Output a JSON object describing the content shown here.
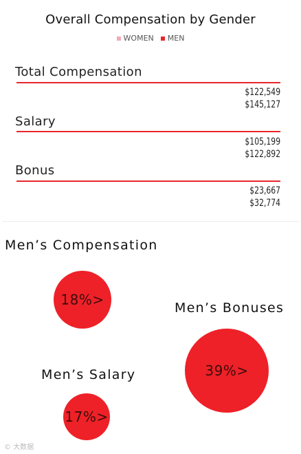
{
  "chart_data": [
    {
      "type": "bar",
      "title": "Overall Compensation by Gender",
      "legend": [
        "WOMEN",
        "MEN"
      ],
      "legend_colors": [
        "#f4a9b4",
        "#e8262b"
      ],
      "categories": [
        "Total Compensation",
        "Salary",
        "Bonus"
      ],
      "series": [
        {
          "name": "WOMEN",
          "color": "#f4a9b4",
          "values": [
            122549,
            105199,
            23667
          ],
          "labels": [
            "$122,549",
            "$105,199",
            "$23,667"
          ]
        },
        {
          "name": "MEN",
          "color": "#e8262b",
          "values": [
            145127,
            122892,
            32774
          ],
          "labels": [
            "$145,127",
            "$122,892",
            "$32,774"
          ]
        }
      ]
    },
    {
      "type": "bubble",
      "title": "Men’s Compensation",
      "color": "#ee2128",
      "items": [
        {
          "label": "Men’s Compensation",
          "value": 18,
          "display": "18%>"
        },
        {
          "label": "Men’s Bonuses",
          "value": 39,
          "display": "39%>"
        },
        {
          "label": "Men’s Salary",
          "value": 17,
          "display": "17%>"
        }
      ]
    }
  ],
  "watermark": "© 大数据"
}
